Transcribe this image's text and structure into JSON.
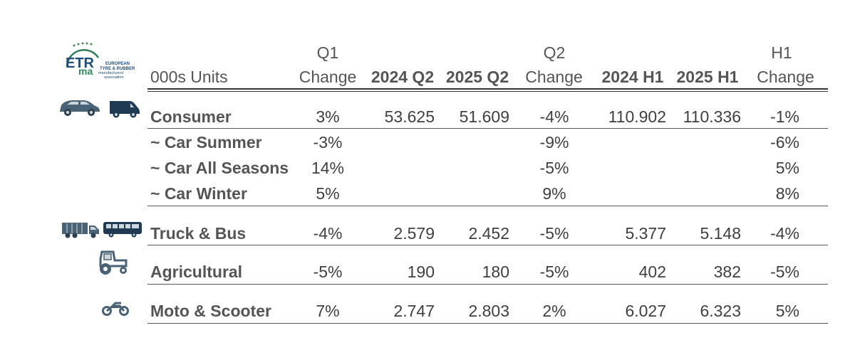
{
  "logo": {
    "mark": "ETR ma",
    "org_lines": [
      "EUROPEAN",
      "TYRE & RUBBER",
      "manufacturers'",
      "association"
    ]
  },
  "header": {
    "units": "000s Units",
    "q1_top": "Q1",
    "q1_bottom": "Change",
    "q2_2024": "2024 Q2",
    "q2_2025": "2025 Q2",
    "q2_top": "Q2",
    "q2_bottom": "Change",
    "h1_2024": "2024 H1",
    "h1_2025": "2025 H1",
    "h1_top": "H1",
    "h1_bottom": "Change"
  },
  "chart_data": {
    "type": "table",
    "columns": [
      "000s Units",
      "Q1 Change",
      "2024 Q2",
      "2025 Q2",
      "Q2 Change",
      "2024 H1",
      "2025 H1",
      "H1 Change"
    ],
    "rows": [
      {
        "label": "Consumer",
        "q1_change": "3%",
        "q2_2024": "53.625",
        "q2_2025": "51.609",
        "q2_change": "-4%",
        "h1_2024": "110.902",
        "h1_2025": "110.336",
        "h1_change": "-1%"
      },
      {
        "label": "~ Car Summer",
        "q1_change": "-3%",
        "q2_2024": "",
        "q2_2025": "",
        "q2_change": "-9%",
        "h1_2024": "",
        "h1_2025": "",
        "h1_change": "-6%"
      },
      {
        "label": "~ Car All Seasons",
        "q1_change": "14%",
        "q2_2024": "",
        "q2_2025": "",
        "q2_change": "-5%",
        "h1_2024": "",
        "h1_2025": "",
        "h1_change": "5%"
      },
      {
        "label": "~ Car Winter",
        "q1_change": "5%",
        "q2_2024": "",
        "q2_2025": "",
        "q2_change": "9%",
        "h1_2024": "",
        "h1_2025": "",
        "h1_change": "8%"
      },
      {
        "label": "Truck & Bus",
        "q1_change": "-4%",
        "q2_2024": "2.579",
        "q2_2025": "2.452",
        "q2_change": "-5%",
        "h1_2024": "5.377",
        "h1_2025": "5.148",
        "h1_change": "-4%"
      },
      {
        "label": "Agricultural",
        "q1_change": "-5%",
        "q2_2024": "190",
        "q2_2025": "180",
        "q2_change": "-5%",
        "h1_2024": "402",
        "h1_2025": "382",
        "h1_change": "-5%"
      },
      {
        "label": "Moto & Scooter",
        "q1_change": "7%",
        "q2_2024": "2.747",
        "q2_2025": "2.803",
        "q2_change": "2%",
        "h1_2024": "6.027",
        "h1_2025": "6.323",
        "h1_change": "5%"
      }
    ]
  },
  "icons": {
    "car": "car-icon",
    "van": "van-icon",
    "truck": "truck-icon",
    "bus": "bus-icon",
    "tractor": "tractor-icon",
    "motorcycle": "motorcycle-icon",
    "color": "#4a6275"
  }
}
